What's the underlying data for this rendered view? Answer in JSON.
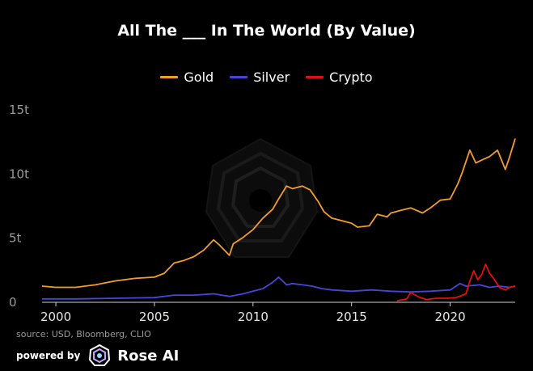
{
  "chart_data": {
    "type": "line",
    "title": "All The ___ In The World (By Value)",
    "xlabel": "",
    "ylabel": "",
    "xlim": [
      1999.3,
      2023.3
    ],
    "ylim": [
      0,
      15
    ],
    "x_ticks": [
      2000,
      2005,
      2010,
      2015,
      2020
    ],
    "x_tick_labels": [
      "2000",
      "2005",
      "2010",
      "2015",
      "2020"
    ],
    "y_ticks": [
      0,
      5,
      10,
      15
    ],
    "y_tick_labels": [
      "0",
      "5t",
      "10t",
      "15t"
    ],
    "grid": false,
    "legend_position": "top-center",
    "series": [
      {
        "name": "Gold",
        "color": "#f39c2c",
        "x": [
          1999.3,
          2000,
          2001,
          2002,
          2003,
          2004,
          2005,
          2005.5,
          2006,
          2006.5,
          2007,
          2007.5,
          2008,
          2008.3,
          2008.8,
          2009,
          2009.5,
          2010,
          2010.5,
          2011,
          2011.3,
          2011.7,
          2012,
          2012.5,
          2012.9,
          2013.3,
          2013.6,
          2014,
          2014.5,
          2015,
          2015.3,
          2015.9,
          2016.3,
          2016.8,
          2017,
          2017.5,
          2018,
          2018.6,
          2019,
          2019.5,
          2020,
          2020.4,
          2020.6,
          2021,
          2021.3,
          2021.7,
          2022,
          2022.4,
          2022.8,
          2023,
          2023.3
        ],
        "y": [
          1.2,
          1.1,
          1.1,
          1.3,
          1.6,
          1.8,
          1.9,
          2.2,
          3.0,
          3.2,
          3.5,
          4.0,
          4.8,
          4.4,
          3.6,
          4.5,
          5.0,
          5.6,
          6.5,
          7.2,
          8.0,
          9.0,
          8.8,
          9.0,
          8.7,
          7.8,
          7.0,
          6.5,
          6.3,
          6.1,
          5.8,
          5.9,
          6.8,
          6.6,
          6.9,
          7.1,
          7.3,
          6.9,
          7.3,
          7.9,
          8.0,
          9.2,
          10.0,
          11.8,
          10.8,
          11.1,
          11.3,
          11.8,
          10.3,
          11.2,
          12.7
        ]
      },
      {
        "name": "Silver",
        "color": "#4646d8",
        "x": [
          1999.3,
          2001,
          2003,
          2005,
          2006,
          2007,
          2008,
          2008.8,
          2009.5,
          2010,
          2010.5,
          2011,
          2011.3,
          2011.7,
          2012,
          2012.5,
          2013,
          2013.5,
          2014,
          2015,
          2016,
          2016.5,
          2017,
          2018,
          2019,
          2019.5,
          2020,
          2020.5,
          2020.8,
          2021.5,
          2022,
          2022.5,
          2023,
          2023.3
        ],
        "y": [
          0.2,
          0.2,
          0.25,
          0.3,
          0.5,
          0.5,
          0.6,
          0.4,
          0.6,
          0.8,
          1.0,
          1.5,
          1.9,
          1.3,
          1.4,
          1.3,
          1.2,
          1.0,
          0.9,
          0.8,
          0.9,
          0.85,
          0.8,
          0.75,
          0.8,
          0.85,
          0.9,
          1.4,
          1.2,
          1.3,
          1.1,
          1.2,
          1.1,
          1.2
        ]
      },
      {
        "name": "Crypto",
        "color": "#e01010",
        "x": [
          2017.3,
          2017.8,
          2018.0,
          2018.4,
          2018.8,
          2019.3,
          2019.8,
          2020.3,
          2020.8,
          2021.0,
          2021.2,
          2021.4,
          2021.6,
          2021.8,
          2022.0,
          2022.2,
          2022.5,
          2022.8,
          2023.0,
          2023.3
        ],
        "y": [
          0.05,
          0.2,
          0.7,
          0.35,
          0.15,
          0.25,
          0.25,
          0.3,
          0.6,
          1.6,
          2.4,
          1.7,
          2.1,
          2.9,
          2.2,
          1.8,
          1.1,
          0.9,
          1.1,
          1.2
        ]
      }
    ]
  },
  "source_text": "source: USD, Bloomberg, CLIO",
  "branding": {
    "powered_by": "powered by",
    "brand_name": "Rose AI",
    "logo_icon": "rose-ai-logo-icon",
    "watermark_icon": "rose-ai-watermark-icon"
  }
}
